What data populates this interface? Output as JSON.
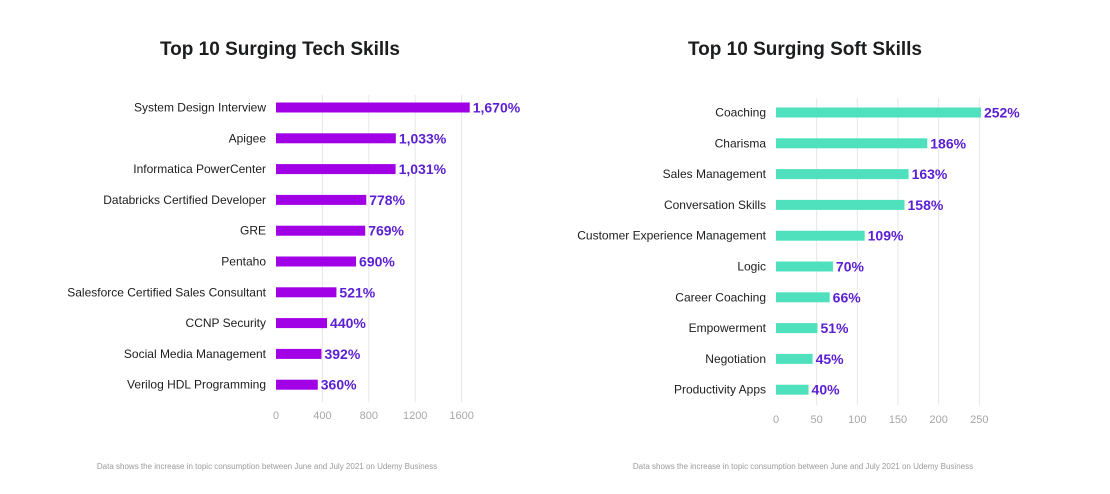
{
  "chart_data": [
    {
      "type": "bar",
      "orientation": "horizontal",
      "title": "Top 10 Surging Tech Skills",
      "categories": [
        "System Design Interview",
        "Apigee",
        "Informatica PowerCenter",
        "Databricks Certified Developer",
        "GRE",
        "Pentaho",
        "Salesforce Certified Sales Consultant",
        "CCNP Security",
        "Social Media Management",
        "Verilog HDL Programming"
      ],
      "values": [
        1670,
        1033,
        1031,
        778,
        769,
        690,
        521,
        440,
        392,
        360
      ],
      "value_labels": [
        "1,670%",
        "1,033%",
        "1,031%",
        "778%",
        "769%",
        "690%",
        "521%",
        "440%",
        "392%",
        "360%"
      ],
      "xticks": [
        0,
        400,
        800,
        1200,
        1600
      ],
      "tick_labels": [
        "0",
        "400",
        "800",
        "1200",
        "1600"
      ],
      "xlim": [
        0,
        1750
      ],
      "grid": true,
      "bar_color": "#a100e6",
      "label_color": "#5b1fd3",
      "footnote": "Data shows the increase in topic consumption between June and July 2021 on Udemy Business"
    },
    {
      "type": "bar",
      "orientation": "horizontal",
      "title": "Top 10 Surging Soft Skills",
      "categories": [
        "Coaching",
        "Charisma",
        "Sales Management",
        "Conversation Skills",
        "Customer Experience Management",
        "Logic",
        "Career Coaching",
        "Empowerment",
        "Negotiation",
        "Productivity Apps"
      ],
      "values": [
        252,
        186,
        163,
        158,
        109,
        70,
        66,
        51,
        45,
        40
      ],
      "value_labels": [
        "252%",
        "186%",
        "163%",
        "158%",
        "109%",
        "70%",
        "66%",
        "51%",
        "45%",
        "40%"
      ],
      "xticks": [
        0,
        50,
        100,
        150,
        200,
        250
      ],
      "tick_labels": [
        "0",
        "50",
        "100",
        "150",
        "200",
        "250"
      ],
      "xlim": [
        0,
        255
      ],
      "grid": true,
      "bar_color": "#4fe0bd",
      "label_color": "#5b1fd3",
      "footnote": "Data shows the increase in topic consumption between June and July 2021 on Udemy Business"
    }
  ]
}
